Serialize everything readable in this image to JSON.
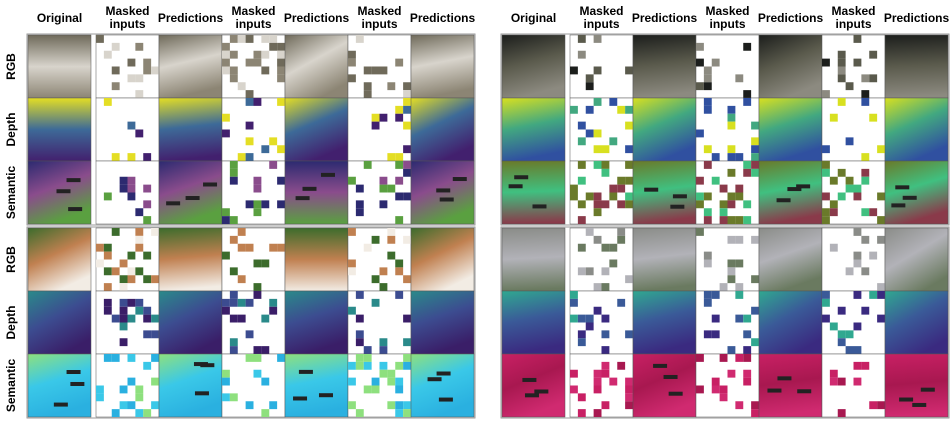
{
  "panels": [
    {
      "headers": [
        "Original",
        "Masked inputs",
        "Predictions",
        "Masked inputs",
        "Predictions",
        "Masked inputs",
        "Predictions"
      ],
      "examples": [
        {
          "rows": [
            "RGB",
            "Depth",
            "Semantic"
          ]
        },
        {
          "rows": [
            "RGB",
            "Depth",
            "Semantic"
          ]
        }
      ]
    },
    {
      "headers": [
        "Original",
        "Masked inputs",
        "Predictions",
        "Masked inputs",
        "Predictions",
        "Masked inputs",
        "Predictions"
      ]
    }
  ]
}
